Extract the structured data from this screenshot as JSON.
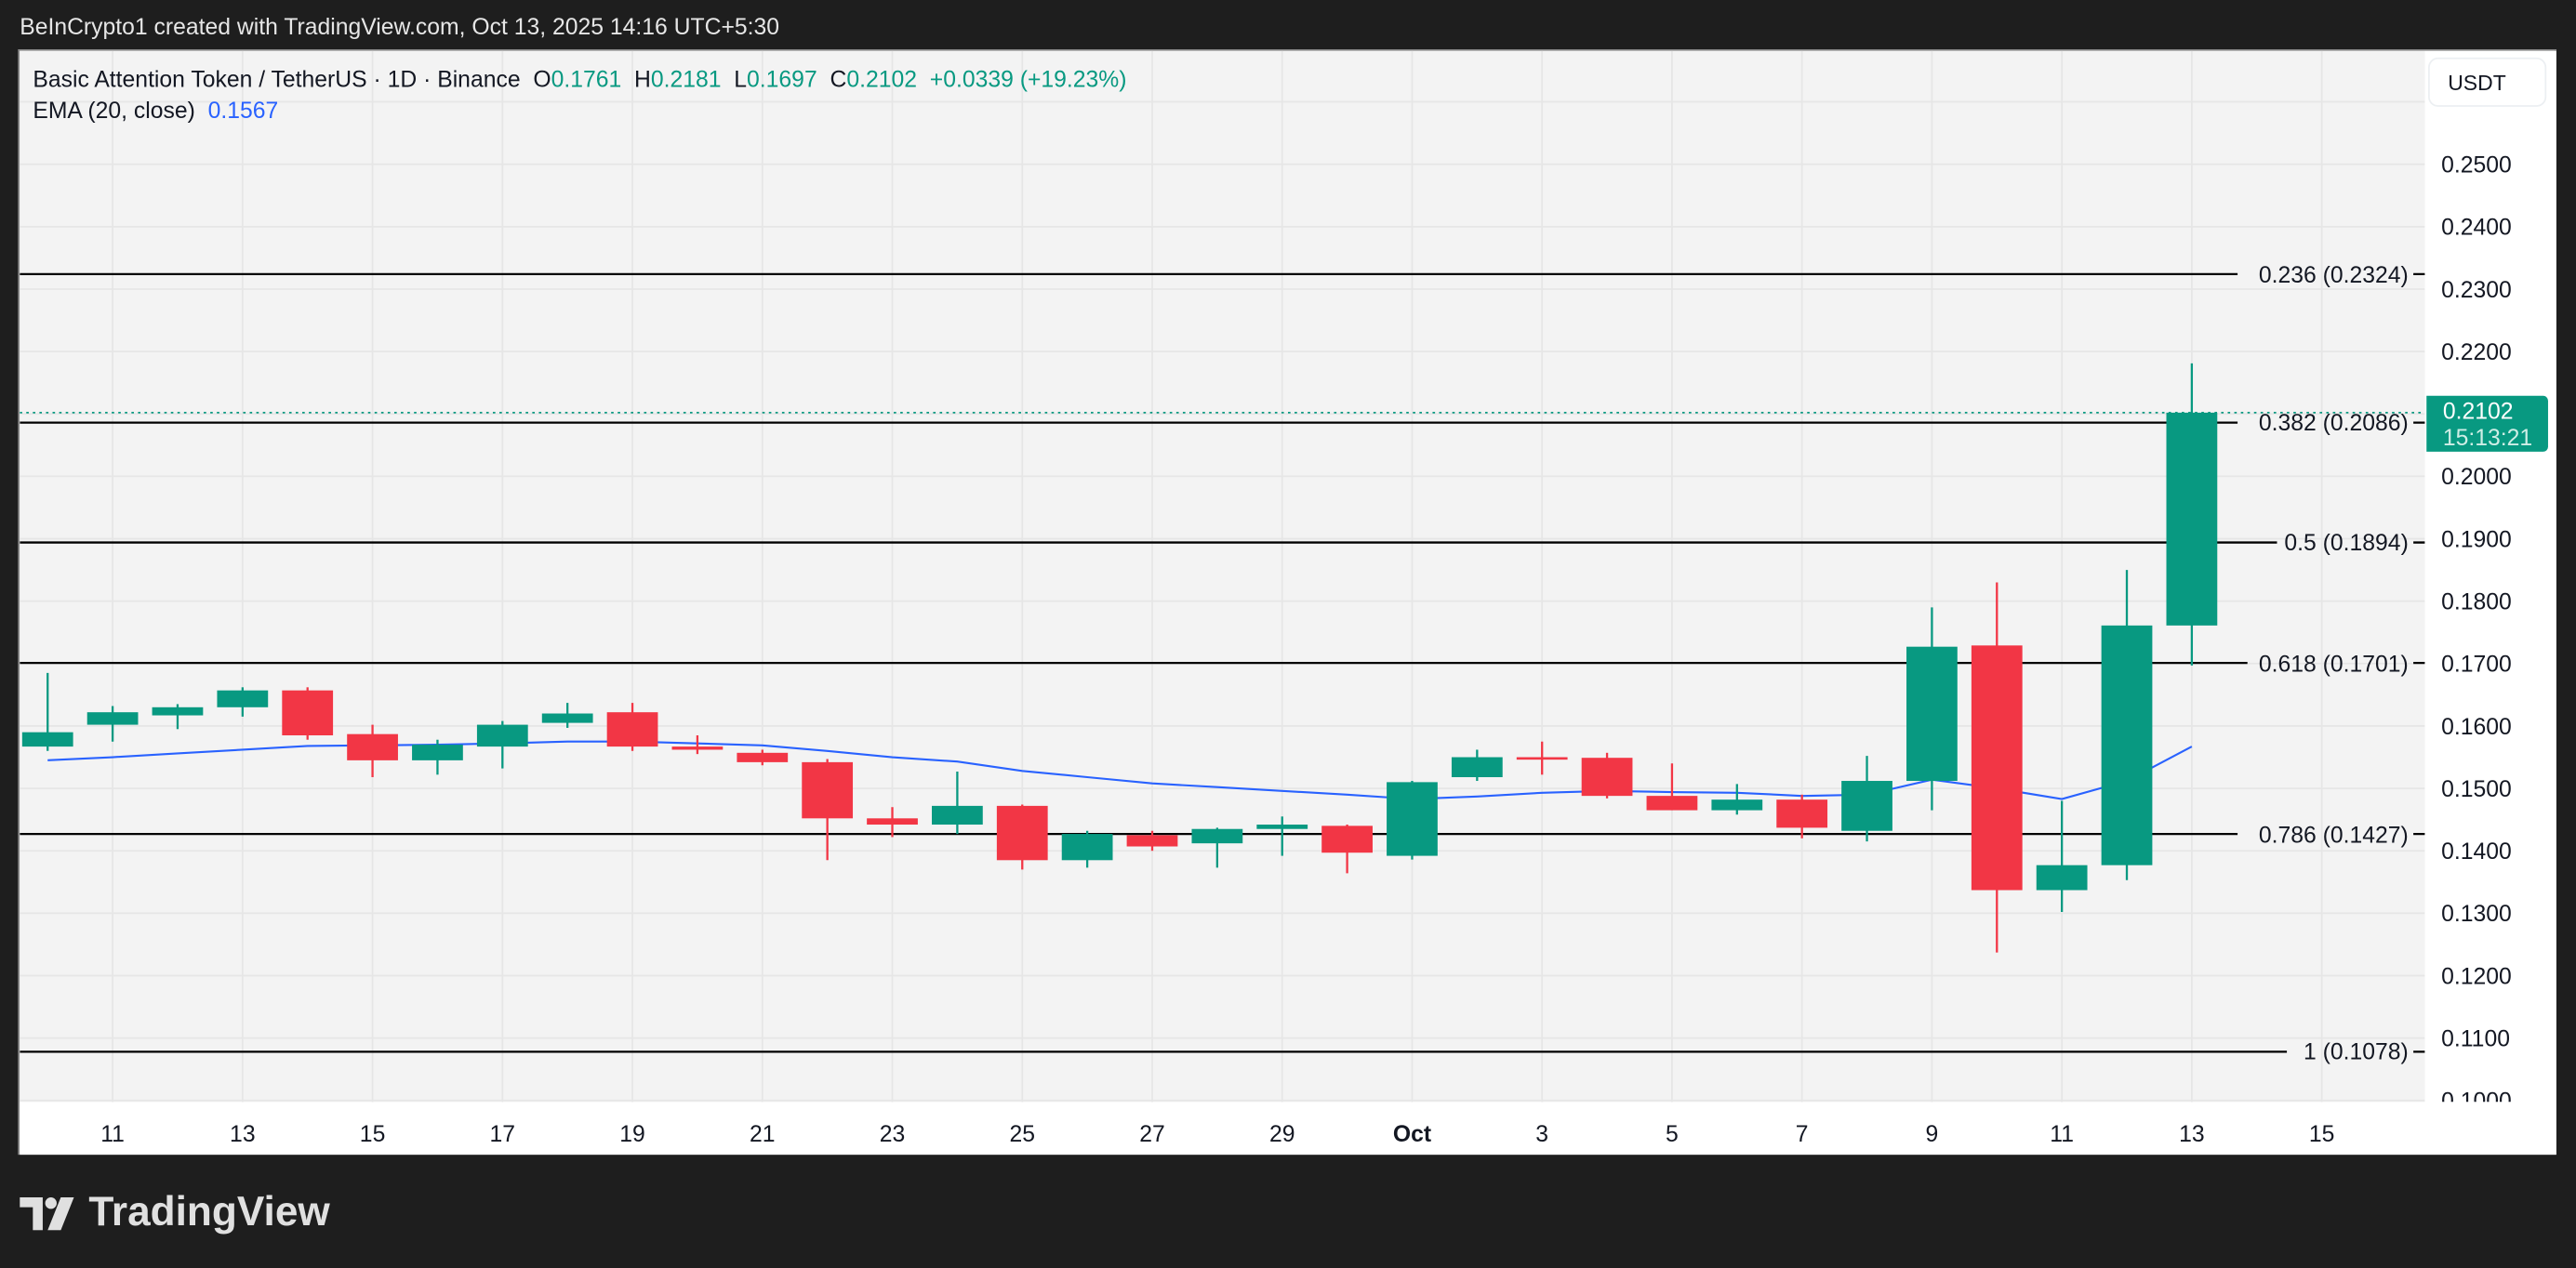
{
  "header": {
    "credit": "BeInCrypto1 created with TradingView.com, Oct 13, 2025 14:16 UTC+5:30"
  },
  "legend": {
    "symbol": "Basic Attention Token / TetherUS · 1D · Binance",
    "o_label": "O",
    "o_value": "0.1761",
    "h_label": "H",
    "h_value": "0.2181",
    "l_label": "L",
    "l_value": "0.1697",
    "c_label": "C",
    "c_value": "0.2102",
    "change": "+0.0339 (+19.23%)",
    "ema_label": "EMA (20, close)",
    "ema_value": "0.1567"
  },
  "price_axis": {
    "unit": "USDT",
    "ticks": [
      "0.2500",
      "0.2400",
      "0.2300",
      "0.2200",
      "0.2000",
      "0.1900",
      "0.1800",
      "0.1700",
      "0.1600",
      "0.1500",
      "0.1400",
      "0.1300",
      "0.1200",
      "0.1100",
      "0.1000"
    ],
    "last_price": "0.2102",
    "countdown": "15:13:21"
  },
  "time_axis": {
    "ticks": [
      "11",
      "13",
      "15",
      "17",
      "19",
      "21",
      "23",
      "25",
      "27",
      "29",
      "Oct",
      "3",
      "5",
      "7",
      "9",
      "11",
      "13",
      "15"
    ]
  },
  "fib_levels": [
    {
      "label": "0.236 (0.2324)",
      "price": 0.2324
    },
    {
      "label": "0.382 (0.2086)",
      "price": 0.2086
    },
    {
      "label": "0.5 (0.1894)",
      "price": 0.1894
    },
    {
      "label": "0.618 (0.1701)",
      "price": 0.1701
    },
    {
      "label": "0.786 (0.1427)",
      "price": 0.1427
    },
    {
      "label": "1 (0.1078)",
      "price": 0.1078
    }
  ],
  "colors": {
    "up": "#089981",
    "down": "#f23645",
    "ema": "#2962ff",
    "fib_line": "#000000",
    "background": "#f3f3f3"
  },
  "footer": {
    "brand": "TradingView"
  },
  "chart_data": {
    "type": "candlestick",
    "title": "Basic Attention Token / TetherUS · 1D · Binance",
    "xlabel": "",
    "ylabel": "USDT",
    "ylim": [
      0.098,
      0.262
    ],
    "grid": true,
    "legend_position": "top-left",
    "x": [
      "Sep 10",
      "Sep 11",
      "Sep 12",
      "Sep 13",
      "Sep 14",
      "Sep 15",
      "Sep 16",
      "Sep 17",
      "Sep 18",
      "Sep 19",
      "Sep 20",
      "Sep 21",
      "Sep 22",
      "Sep 23",
      "Sep 24",
      "Sep 25",
      "Sep 26",
      "Sep 27",
      "Sep 28",
      "Sep 29",
      "Sep 30",
      "Oct 1",
      "Oct 2",
      "Oct 3",
      "Oct 4",
      "Oct 5",
      "Oct 6",
      "Oct 7",
      "Oct 8",
      "Oct 9",
      "Oct 10",
      "Oct 11",
      "Oct 12",
      "Oct 13"
    ],
    "open": [
      0.1567,
      0.1602,
      0.1617,
      0.163,
      0.1657,
      0.1587,
      0.1545,
      0.1567,
      0.1605,
      0.1622,
      0.1567,
      0.1557,
      0.1542,
      0.1452,
      0.1442,
      0.1472,
      0.1385,
      0.1425,
      0.1412,
      0.1435,
      0.144,
      0.1392,
      0.1518,
      0.155,
      0.1549,
      0.1488,
      0.1465,
      0.1482,
      0.1432,
      0.1512,
      0.1729,
      0.1337,
      0.1377,
      0.1761
    ],
    "high": [
      0.1685,
      0.1632,
      0.1635,
      0.1662,
      0.1662,
      0.1602,
      0.1578,
      0.1608,
      0.1637,
      0.1637,
      0.1585,
      0.1562,
      0.1547,
      0.147,
      0.1527,
      0.1474,
      0.1432,
      0.1432,
      0.1437,
      0.1455,
      0.1442,
      0.1512,
      0.1562,
      0.1575,
      0.1557,
      0.154,
      0.1507,
      0.149,
      0.1552,
      0.179,
      0.183,
      0.148,
      0.185,
      0.2181
    ],
    "low": [
      0.156,
      0.1575,
      0.1595,
      0.1615,
      0.1578,
      0.1518,
      0.1522,
      0.1532,
      0.1597,
      0.156,
      0.1555,
      0.1537,
      0.1385,
      0.1422,
      0.1427,
      0.137,
      0.1373,
      0.14,
      0.1373,
      0.1392,
      0.1364,
      0.1386,
      0.1512,
      0.1522,
      0.1484,
      0.1465,
      0.1458,
      0.142,
      0.1415,
      0.1465,
      0.1237,
      0.1302,
      0.1353,
      0.1697
    ],
    "close": [
      0.159,
      0.1622,
      0.163,
      0.1657,
      0.1585,
      0.1545,
      0.157,
      0.1602,
      0.162,
      0.1567,
      0.1562,
      0.1542,
      0.1452,
      0.1442,
      0.1472,
      0.1385,
      0.1427,
      0.1407,
      0.1435,
      0.1442,
      0.1397,
      0.151,
      0.155,
      0.1549,
      0.1488,
      0.1465,
      0.1482,
      0.1437,
      0.1512,
      0.1727,
      0.1337,
      0.1377,
      0.1761,
      0.2102
    ],
    "series": [
      {
        "name": "EMA (20, close)",
        "values": [
          0.1545,
          0.155,
          0.1556,
          0.1562,
          0.1568,
          0.1569,
          0.157,
          0.1572,
          0.1575,
          0.1575,
          0.1572,
          0.1569,
          0.156,
          0.155,
          0.1543,
          0.1528,
          0.1518,
          0.1508,
          0.1502,
          0.1496,
          0.149,
          0.1483,
          0.1487,
          0.1493,
          0.1496,
          0.1494,
          0.1493,
          0.1488,
          0.149,
          0.1514,
          0.15,
          0.1483,
          0.1512,
          0.1567
        ]
      }
    ],
    "annotations": [
      "Fib 0.236 (0.2324)",
      "Fib 0.382 (0.2086)",
      "Fib 0.5 (0.1894)",
      "Fib 0.618 (0.1701)",
      "Fib 0.786 (0.1427)",
      "Fib 1 (0.1078)"
    ]
  }
}
